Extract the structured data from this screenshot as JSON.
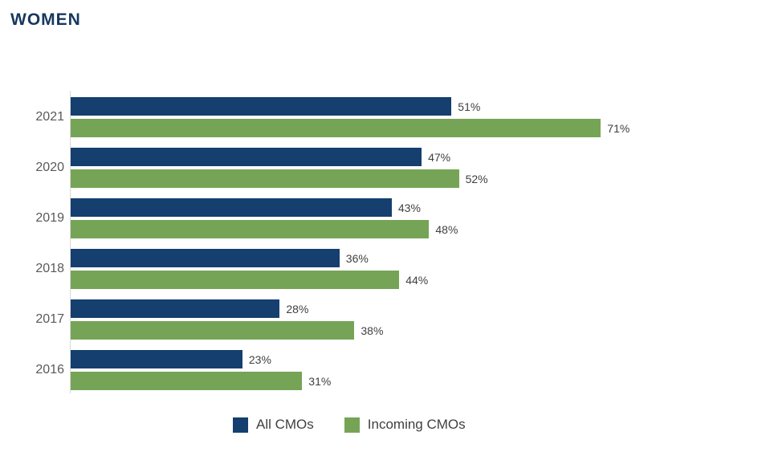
{
  "chart_data": {
    "type": "bar",
    "orientation": "horizontal",
    "title": "WOMEN",
    "categories": [
      "2021",
      "2020",
      "2019",
      "2018",
      "2017",
      "2016"
    ],
    "series": [
      {
        "name": "All CMOs",
        "color": "#143f6f",
        "values": [
          51,
          47,
          43,
          36,
          28,
          23
        ]
      },
      {
        "name": "Incoming CMOs",
        "color": "#76a456",
        "values": [
          71,
          52,
          48,
          44,
          38,
          31
        ]
      }
    ],
    "value_suffix": "%",
    "data_labels": true,
    "xlim": [
      0,
      100
    ],
    "grid": false,
    "legend_position": "bottom",
    "colors": {
      "title": "#17375e",
      "category_labels": "#595959",
      "value_labels": "#404040",
      "axis_line": "#d9d9d9"
    }
  }
}
